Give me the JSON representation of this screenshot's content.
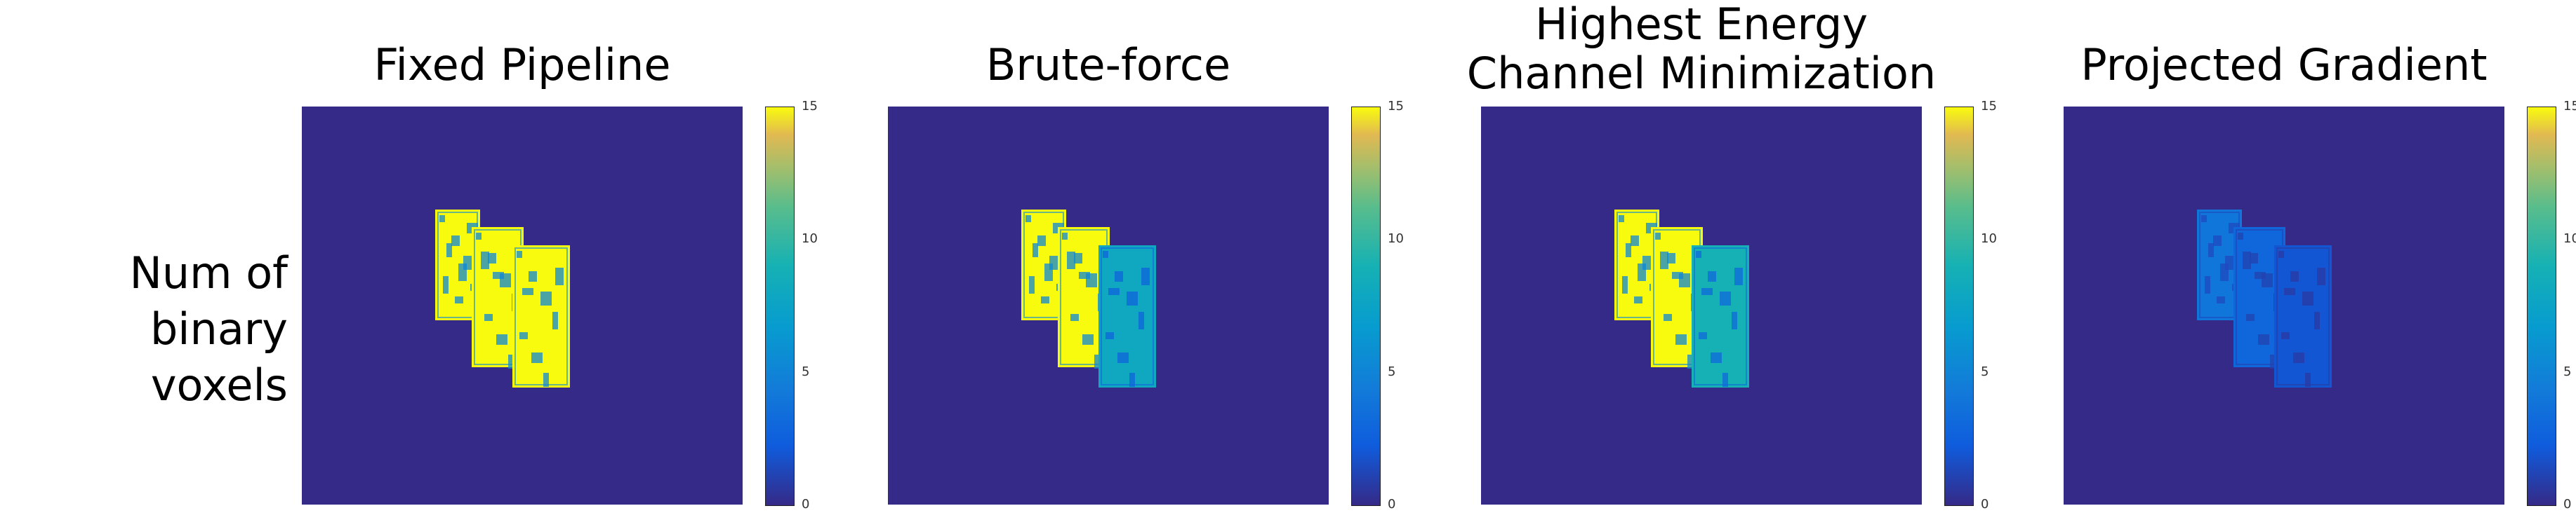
{
  "row_label": {
    "line1": "Num of",
    "line2": "binary voxels"
  },
  "colors": {
    "background": "#352a87",
    "low": "#352a87",
    "high": "#f9fb0e"
  },
  "colorbar": {
    "min": 0,
    "max": 15,
    "ticks": [
      "15",
      "10",
      "5",
      "0"
    ],
    "colormap": "parula"
  },
  "panels": [
    {
      "title_lines": [
        "Fixed Pipeline"
      ],
      "card_values": [
        15,
        15,
        15
      ]
    },
    {
      "title_lines": [
        "Brute-force"
      ],
      "card_values": [
        15,
        15,
        8
      ]
    },
    {
      "title_lines": [
        "Highest Energy",
        "Channel Minimization"
      ],
      "card_values": [
        15,
        15,
        9
      ]
    },
    {
      "title_lines": [
        "Projected Gradient"
      ],
      "card_values": [
        4,
        3,
        2
      ]
    }
  ],
  "chart_data": {
    "type": "heatmap",
    "title": "",
    "row_label": "Num of binary voxels",
    "colorbar_range": [
      0,
      15
    ],
    "series": [
      {
        "name": "Fixed Pipeline",
        "values": [
          15,
          15,
          15
        ]
      },
      {
        "name": "Brute-force",
        "values": [
          15,
          15,
          8
        ]
      },
      {
        "name": "Highest Energy Channel Minimization",
        "values": [
          15,
          15,
          9
        ]
      },
      {
        "name": "Projected Gradient",
        "values": [
          4,
          3,
          2
        ]
      }
    ]
  }
}
